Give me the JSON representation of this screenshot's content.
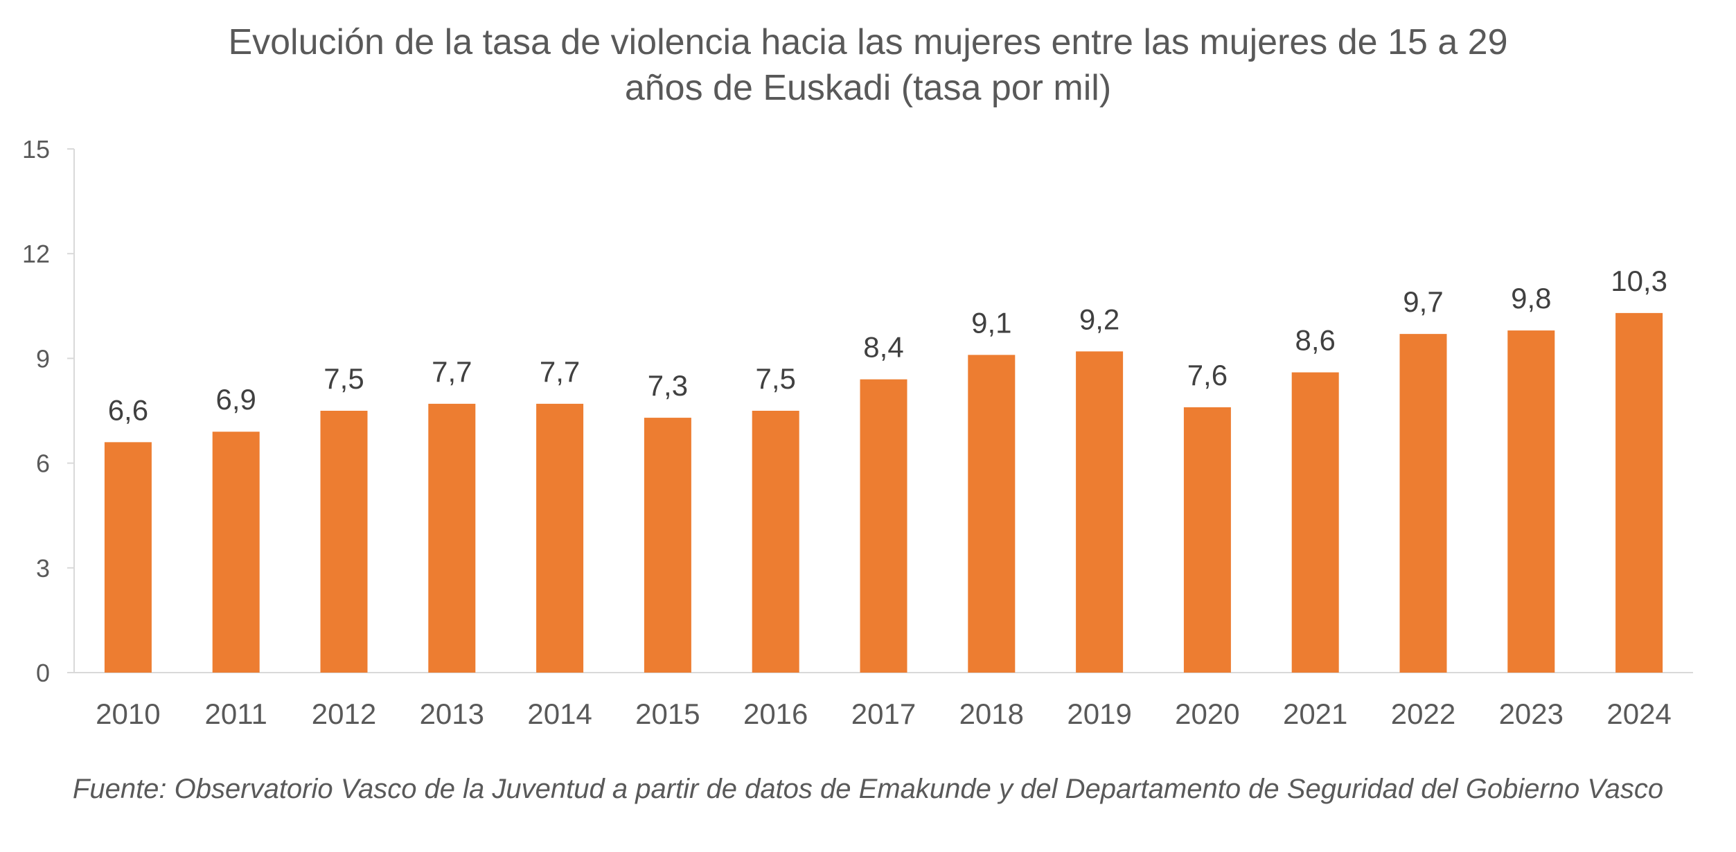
{
  "chart_data": {
    "type": "bar",
    "title_lines": [
      "Evolución de la tasa de violencia hacia las mujeres entre las mujeres de 15 a 29",
      "años de Euskadi (tasa por mil)"
    ],
    "categories": [
      "2010",
      "2011",
      "2012",
      "2013",
      "2014",
      "2015",
      "2016",
      "2017",
      "2018",
      "2019",
      "2020",
      "2021",
      "2022",
      "2023",
      "2024"
    ],
    "values": [
      6.6,
      6.9,
      7.5,
      7.7,
      7.7,
      7.3,
      7.5,
      8.4,
      9.1,
      9.2,
      7.6,
      8.6,
      9.7,
      9.8,
      10.3
    ],
    "data_labels": [
      "6,6",
      "6,9",
      "7,5",
      "7,7",
      "7,7",
      "7,3",
      "7,5",
      "8,4",
      "9,1",
      "9,2",
      "7,6",
      "8,6",
      "9,7",
      "9,8",
      "10,3"
    ],
    "ylim": [
      0,
      15
    ],
    "yticks": [
      0,
      3,
      6,
      9,
      12,
      15
    ],
    "ytick_labels": [
      "0",
      "3",
      "6",
      "9",
      "12",
      "15"
    ],
    "xlabel": "",
    "ylabel": "",
    "grid": false,
    "legend": "none",
    "bar_color": "#ED7D31",
    "axis_color": "#D9D9D9"
  },
  "source": "Fuente: Observatorio Vasco de la Juventud a partir de datos de Emakunde y del Departamento de Seguridad del Gobierno Vasco"
}
